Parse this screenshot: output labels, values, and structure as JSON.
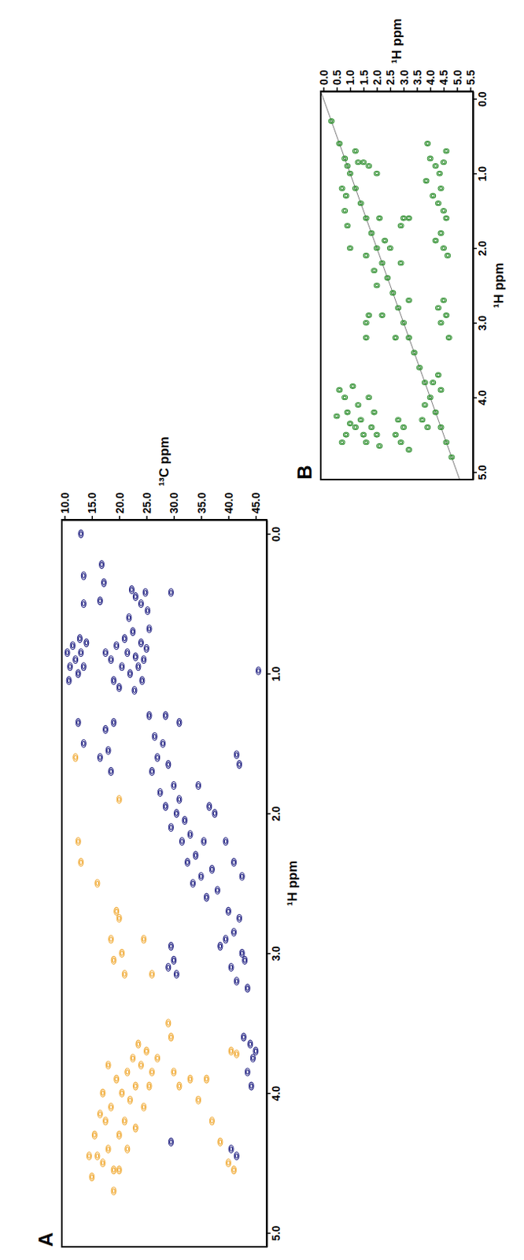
{
  "chart_data": [
    {
      "title": "A",
      "type": "scatter",
      "marker": "ellipse",
      "xlabel": "¹³C ppm",
      "ylabel": "¹H ppm",
      "xlim": [
        9.5,
        47
      ],
      "ylim": [
        -0.1,
        5.1
      ],
      "xticks": [
        {
          "value": 10,
          "label": "10.0"
        },
        {
          "value": 15,
          "label": "15.0"
        },
        {
          "value": 20,
          "label": "20.0"
        },
        {
          "value": 25,
          "label": "25.0"
        },
        {
          "value": 30,
          "label": "30.0"
        },
        {
          "value": 35,
          "label": "35.0"
        },
        {
          "value": 40,
          "label": "40.0"
        },
        {
          "value": 45,
          "label": "45.0"
        }
      ],
      "yticks": [
        {
          "value": 0,
          "label": "0.0"
        },
        {
          "value": 1,
          "label": "1.0"
        },
        {
          "value": 2,
          "label": "2.0"
        },
        {
          "value": 3,
          "label": "3.0"
        },
        {
          "value": 4,
          "label": "4.0"
        },
        {
          "value": 5,
          "label": "5.0"
        }
      ],
      "grid": false,
      "series": [
        {
          "color": "#1a1a7e",
          "x": [
            13.0,
            13.5,
            16.8,
            17.2,
            13.5,
            16.5,
            22.3,
            23.0,
            24.0,
            24.8,
            25.2,
            21.8,
            29.5,
            10.5,
            11.0,
            11.5,
            12.0,
            12.5,
            13.0,
            13.5,
            14.0,
            10.8,
            12.8,
            17.5,
            18.5,
            19.5,
            20.5,
            21.0,
            21.5,
            22.0,
            22.5,
            23.0,
            23.5,
            24.0,
            24.5,
            25.0,
            25.5,
            19.0,
            20.0,
            22.8,
            24.2,
            17.5,
            18.0,
            19.0,
            16.5,
            18.5,
            13.5,
            12.5,
            25.5,
            26.5,
            27.0,
            26.0,
            28.0,
            29.0,
            27.5,
            28.5,
            30.0,
            30.5,
            31.0,
            29.5,
            32.0,
            31.5,
            33.0,
            32.5,
            34.0,
            33.5,
            35.0,
            35.5,
            36.0,
            37.0,
            38.0,
            36.5,
            34.5,
            31.0,
            28.5,
            40.0,
            41.0,
            42.0,
            39.5,
            42.5,
            40.5,
            41.5,
            43.0,
            38.5,
            42.5,
            41.0,
            39.5,
            37.5,
            43.5,
            29.5,
            30.0,
            30.5,
            29.0,
            41.5,
            42.0,
            45.5,
            44.0,
            44.5,
            43.5,
            45.0,
            44.2,
            42.8,
            40.5,
            41.5,
            29.5
          ],
          "values": [
            0.0,
            0.3,
            0.22,
            0.35,
            0.5,
            0.48,
            0.4,
            0.45,
            0.5,
            0.42,
            0.55,
            0.6,
            0.42,
            0.85,
            0.95,
            0.8,
            0.9,
            1.0,
            0.85,
            0.95,
            0.78,
            1.05,
            0.75,
            0.85,
            0.9,
            0.8,
            0.95,
            0.75,
            0.85,
            1.0,
            0.7,
            0.88,
            0.95,
            0.78,
            0.9,
            0.82,
            0.68,
            1.05,
            1.1,
            1.12,
            1.05,
            1.4,
            1.55,
            1.35,
            1.6,
            1.7,
            1.5,
            1.35,
            1.3,
            1.45,
            1.6,
            1.7,
            1.5,
            1.65,
            1.85,
            1.95,
            1.8,
            2.0,
            1.9,
            2.1,
            2.05,
            2.2,
            2.15,
            2.35,
            2.3,
            2.5,
            2.45,
            2.2,
            2.6,
            2.4,
            2.55,
            1.95,
            1.8,
            1.35,
            1.3,
            2.7,
            2.85,
            2.75,
            2.9,
            3.0,
            3.1,
            3.2,
            3.05,
            2.95,
            2.45,
            2.35,
            2.2,
            2.0,
            3.25,
            2.95,
            3.05,
            3.15,
            3.1,
            1.58,
            1.65,
            0.98,
            3.65,
            3.75,
            3.85,
            3.7,
            3.95,
            3.6,
            4.4,
            4.45,
            4.35
          ]
        },
        {
          "color": "#f0a830",
          "x": [
            15.5,
            16.0,
            17.0,
            18.0,
            19.0,
            17.5,
            18.5,
            20.0,
            21.0,
            22.0,
            23.0,
            24.0,
            25.0,
            19.5,
            20.5,
            21.5,
            22.5,
            23.5,
            18.0,
            17.0,
            16.5,
            19.0,
            15.0,
            14.5,
            20.0,
            21.5,
            24.5,
            23.0,
            25.5,
            26.0,
            19.5,
            20.0,
            18.5,
            19.0,
            20.5,
            21.0,
            26.0,
            29.0,
            29.5,
            27.0,
            30.0,
            31.0,
            33.0,
            34.5,
            36.0,
            37.0,
            38.5,
            40.0,
            41.0,
            12.5,
            13.0,
            16.0,
            20.0,
            12.0,
            24.5,
            40.5,
            41.5
          ],
          "values": [
            4.3,
            4.45,
            4.5,
            4.4,
            4.55,
            4.2,
            4.1,
            4.3,
            4.2,
            4.05,
            3.95,
            3.8,
            3.7,
            3.9,
            4.0,
            3.85,
            3.75,
            3.65,
            3.8,
            4.0,
            4.15,
            4.7,
            4.6,
            4.45,
            4.55,
            4.4,
            4.1,
            4.25,
            3.95,
            3.85,
            2.7,
            2.75,
            2.9,
            3.05,
            3.0,
            3.15,
            3.15,
            3.5,
            3.6,
            3.75,
            3.85,
            3.95,
            3.9,
            4.05,
            3.9,
            4.2,
            4.35,
            4.5,
            4.55,
            2.2,
            2.35,
            2.5,
            1.9,
            1.6,
            2.9,
            3.7,
            3.72
          ]
        }
      ]
    },
    {
      "title": "B",
      "type": "scatter",
      "marker": "ellipse",
      "xlabel": "¹H ppm",
      "ylabel": "¹H ppm",
      "xlim": [
        -0.1,
        5.6
      ],
      "ylim": [
        -0.1,
        5.1
      ],
      "xticks": [
        {
          "value": 0,
          "label": "0.0"
        },
        0.5,
        {
          "value": 1,
          "label": "1.0"
        },
        1.5,
        {
          "value": 2,
          "label": "2.0"
        },
        2.5,
        {
          "value": 3,
          "label": "3.0"
        },
        3.5,
        {
          "value": 4,
          "label": "4.0"
        },
        4.5,
        {
          "value": 5,
          "label": "5.0"
        },
        5.5
      ],
      "yticks": [
        {
          "value": 0,
          "label": "0.0"
        },
        {
          "value": 1,
          "label": "1.0"
        },
        {
          "value": 2,
          "label": "2.0"
        },
        {
          "value": 3,
          "label": "3.0"
        },
        {
          "value": 4,
          "label": "4.0"
        },
        {
          "value": 5,
          "label": "5.0"
        }
      ],
      "grid": false,
      "series": [
        {
          "color": "#2f8f2f",
          "x": [
            0.3,
            0.6,
            0.8,
            0.9,
            1.0,
            1.2,
            1.4,
            1.6,
            1.8,
            2.0,
            2.2,
            2.4,
            2.6,
            2.8,
            3.0,
            3.2,
            3.4,
            3.6,
            3.8,
            4.0,
            4.2,
            4.4,
            4.6,
            4.8,
            0.8,
            0.9,
            1.0,
            0.85,
            1.5,
            1.7,
            2.0,
            1.3,
            0.7,
            1.2,
            1.6,
            2.1,
            1.9,
            2.3,
            2.5,
            2.0,
            2.2,
            2.9,
            1.6,
            3.0,
            1.7,
            2.9,
            2.7,
            3.2,
            0.6,
            0.8,
            0.9,
            1.0,
            0.85,
            1.2,
            1.3,
            1.4,
            1.5,
            1.6,
            1.8,
            1.9,
            2.0,
            2.1,
            1.1,
            0.7,
            1.7,
            0.5,
            3.9,
            4.0,
            4.2,
            4.35,
            4.5,
            4.4,
            4.1,
            4.3,
            4.5,
            4.6,
            4.4,
            4.2,
            4.5,
            4.65,
            3.85,
            4.6,
            2.7,
            2.9,
            3.0,
            3.2,
            2.8,
            4.5,
            4.6,
            4.4,
            4.7,
            4.3,
            1.6,
            3.2,
            3.7,
            3.9,
            4.3,
            4.4,
            3.8,
            4.1
          ],
          "values": [
            0.3,
            0.6,
            0.8,
            0.9,
            1.0,
            1.2,
            1.4,
            1.6,
            1.8,
            2.0,
            2.2,
            2.4,
            2.6,
            2.8,
            3.0,
            3.2,
            3.4,
            3.6,
            3.8,
            4.0,
            4.2,
            4.4,
            4.6,
            4.8,
            1.5,
            1.7,
            2.0,
            1.3,
            0.85,
            0.9,
            1.0,
            0.85,
            1.2,
            0.7,
            2.1,
            1.6,
            2.3,
            1.9,
            2.0,
            2.5,
            2.9,
            2.2,
            3.0,
            1.6,
            2.9,
            1.7,
            3.2,
            2.7,
            3.9,
            4.0,
            4.2,
            4.35,
            4.5,
            4.4,
            4.1,
            4.3,
            4.5,
            4.6,
            4.4,
            4.2,
            4.5,
            4.65,
            3.85,
            4.6,
            4.0,
            4.25,
            0.6,
            0.8,
            0.9,
            1.0,
            0.85,
            1.2,
            1.3,
            1.4,
            1.5,
            1.6,
            1.8,
            1.9,
            2.0,
            2.1,
            1.1,
            0.7,
            4.5,
            4.6,
            4.4,
            4.7,
            4.3,
            2.7,
            2.9,
            3.0,
            3.2,
            2.8,
            3.2,
            1.6,
            4.3,
            4.4,
            3.7,
            3.9,
            4.1,
            3.8
          ]
        }
      ]
    }
  ]
}
